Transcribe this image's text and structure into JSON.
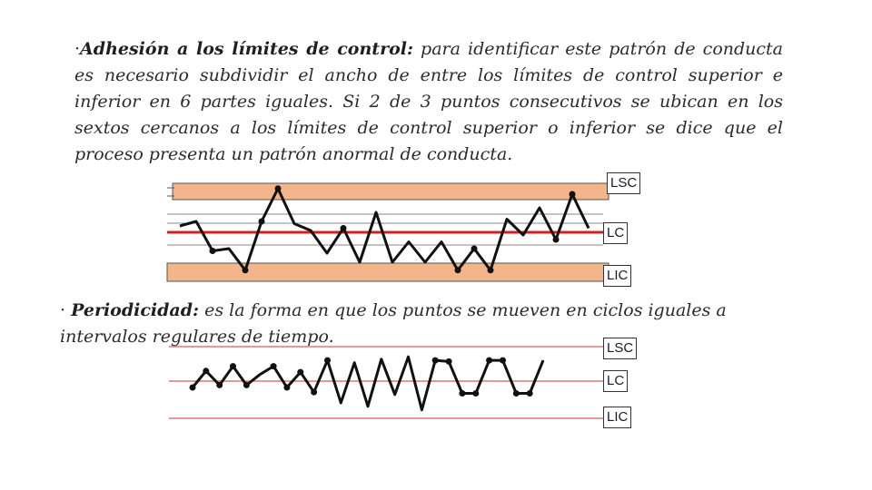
{
  "text": {
    "p1_bullet": "·",
    "p1_term": "Adhesión a los límites de control:",
    "p1_body": " para identificar este patrón de conducta es necesario subdividir el ancho de entre los límites de control superior e inferior en 6 partes iguales. Si 2 de 3 puntos consecutivos se ubican en los sextos cercanos a los límites de control superior o inferior se dice que el proceso presenta un patrón anormal de conducta.",
    "p2_bullet": "· ",
    "p2_term": "Periodicidad:",
    "p2_body": " es la forma en que los puntos se mueven en ciclos iguales a intervalos regulares de tiempo."
  },
  "colors": {
    "band": "#f3b68c",
    "center_line": "#d62020",
    "limit_line": "#cc3333",
    "series": "#111111"
  },
  "chart1": {
    "labels": {
      "upper": "LSC",
      "center": "LC",
      "lower": "LIC"
    },
    "points": [
      {
        "y": 4.4,
        "marker": false
      },
      {
        "y": 4.8,
        "marker": false
      },
      {
        "y": 2.2,
        "marker": true
      },
      {
        "y": 2.4,
        "marker": false
      },
      {
        "y": 0.5,
        "marker": true
      },
      {
        "y": 4.8,
        "marker": true
      },
      {
        "y": 7.7,
        "marker": true
      },
      {
        "y": 4.6,
        "marker": false
      },
      {
        "y": 4.0,
        "marker": false
      },
      {
        "y": 2.0,
        "marker": false
      },
      {
        "y": 4.2,
        "marker": true
      },
      {
        "y": 1.2,
        "marker": false
      },
      {
        "y": 5.6,
        "marker": false
      },
      {
        "y": 1.2,
        "marker": false
      },
      {
        "y": 3.0,
        "marker": false
      },
      {
        "y": 1.2,
        "marker": false
      },
      {
        "y": 3.0,
        "marker": false
      },
      {
        "y": 0.5,
        "marker": true
      },
      {
        "y": 2.4,
        "marker": true
      },
      {
        "y": 0.5,
        "marker": true
      },
      {
        "y": 5.0,
        "marker": false
      },
      {
        "y": 3.6,
        "marker": false
      },
      {
        "y": 6.0,
        "marker": false
      },
      {
        "y": 3.2,
        "marker": true
      },
      {
        "y": 7.2,
        "marker": true
      },
      {
        "y": 4.2,
        "marker": false
      }
    ]
  },
  "chart2": {
    "labels": {
      "upper": "LSC",
      "center": "LC",
      "lower": "LIC"
    },
    "points": [
      {
        "y": 1.0,
        "marker": true
      },
      {
        "y": 2.4,
        "marker": true
      },
      {
        "y": 1.2,
        "marker": true
      },
      {
        "y": 2.8,
        "marker": true
      },
      {
        "y": 1.2,
        "marker": true
      },
      {
        "y": 2.1,
        "marker": false
      },
      {
        "y": 2.8,
        "marker": true
      },
      {
        "y": 1.0,
        "marker": true
      },
      {
        "y": 2.3,
        "marker": true
      },
      {
        "y": 0.6,
        "marker": true
      },
      {
        "y": 3.3,
        "marker": true
      },
      {
        "y": -0.3,
        "marker": false
      },
      {
        "y": 3.1,
        "marker": false
      },
      {
        "y": -0.6,
        "marker": false
      },
      {
        "y": 3.4,
        "marker": false
      },
      {
        "y": 0.4,
        "marker": false
      },
      {
        "y": 3.6,
        "marker": false
      },
      {
        "y": -0.9,
        "marker": false
      },
      {
        "y": 3.3,
        "marker": true
      },
      {
        "y": 3.2,
        "marker": true
      },
      {
        "y": 0.5,
        "marker": true
      },
      {
        "y": 0.5,
        "marker": true
      },
      {
        "y": 3.3,
        "marker": true
      },
      {
        "y": 3.3,
        "marker": true
      },
      {
        "y": 0.5,
        "marker": true
      },
      {
        "y": 0.5,
        "marker": true
      },
      {
        "y": 3.3,
        "marker": false
      }
    ]
  }
}
